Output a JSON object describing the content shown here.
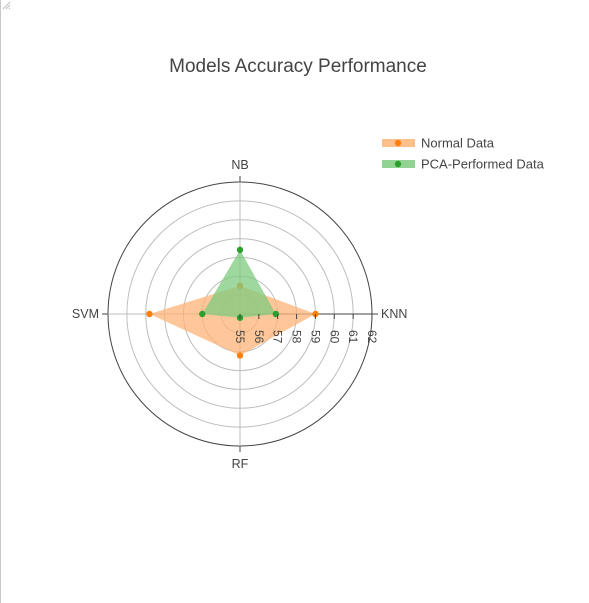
{
  "chart_data": {
    "type": "radar",
    "title": "Models Accuracy Performance",
    "categories": [
      "KNN",
      "NB",
      "SVM",
      "RF"
    ],
    "radial_range": [
      55,
      62
    ],
    "radial_ticks": [
      "55",
      "56",
      "57",
      "58",
      "59",
      "60",
      "61",
      "62"
    ],
    "grid": true,
    "legend_position": "top-right",
    "series": [
      {
        "name": "Normal Data",
        "color": "#ff7f0e",
        "fill": "#ffb477",
        "values": [
          59.0,
          56.5,
          59.8,
          57.2
        ]
      },
      {
        "name": "PCA-Performed Data",
        "color": "#2ca02c",
        "fill": "#7fcb7f",
        "values": [
          56.9,
          58.4,
          57.0,
          55.2
        ]
      }
    ]
  }
}
